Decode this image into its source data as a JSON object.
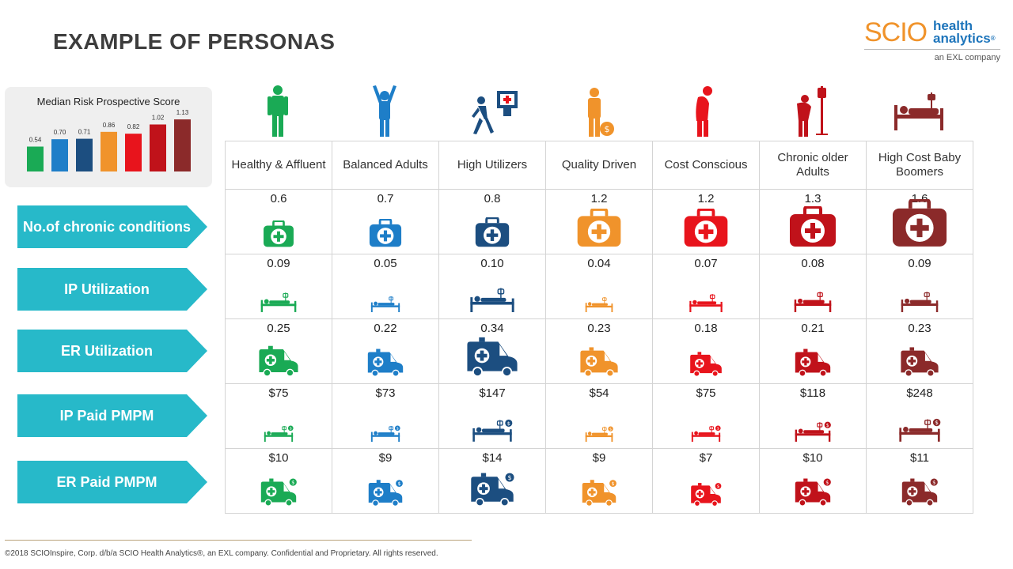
{
  "title": "EXAMPLE OF PERSONAS",
  "logo": {
    "brand_a": "SCIO",
    "brand_b1": "health",
    "brand_b2": "analytics",
    "reg": "®",
    "tagline": "an EXL company"
  },
  "risk_chart_title": "Median Risk Prospective Score",
  "chart_data": {
    "type": "bar",
    "title": "Median Risk Prospective Score",
    "categories": [
      "Healthy & Affluent",
      "Balanced Adults",
      "High Utilizers",
      "Quality Driven",
      "Cost Conscious",
      "Chronic older Adults",
      "High Cost Baby Boomers"
    ],
    "values": [
      0.54,
      0.7,
      0.71,
      0.86,
      0.82,
      1.02,
      1.13
    ],
    "value_labels": [
      "0.54",
      "0.70",
      "0.71",
      "0.86",
      "0.82",
      "1.02",
      "1.13"
    ],
    "colors": [
      "#1aaa55",
      "#1e7ec8",
      "#1c4e80",
      "#f0932b",
      "#e8141c",
      "#c0121a",
      "#8b2a2a"
    ],
    "grid": false
  },
  "row_labels": [
    "No.of chronic conditions",
    "IP Utilization",
    "ER Utilization",
    "IP Paid PMPM",
    "ER Paid PMPM"
  ],
  "personas": [
    {
      "name": "Healthy & Affluent",
      "color": "#1aaa55",
      "icon": "standing-person-icon",
      "values": [
        "0.6",
        "0.09",
        "0.25",
        "$75",
        "$10"
      ],
      "scale": [
        0.25,
        0.45,
        0.6,
        0.3,
        0.5
      ]
    },
    {
      "name": "Balanced Adults",
      "color": "#1e7ec8",
      "icon": "arms-raised-person-icon",
      "values": [
        "0.7",
        "0.05",
        "0.22",
        "$73",
        "$9"
      ],
      "scale": [
        0.3,
        0.3,
        0.5,
        0.3,
        0.45
      ]
    },
    {
      "name": "High Utilizers",
      "color": "#1c4e80",
      "icon": "walking-to-hospital-icon",
      "values": [
        "0.8",
        "0.10",
        "0.34",
        "$147",
        "$14"
      ],
      "scale": [
        0.35,
        0.7,
        0.9,
        0.55,
        0.7
      ]
    },
    {
      "name": "Quality Driven",
      "color": "#f0932b",
      "icon": "person-with-money-icon",
      "values": [
        "1.2",
        "0.04",
        "0.23",
        "$54",
        "$9"
      ],
      "scale": [
        0.6,
        0.25,
        0.55,
        0.25,
        0.45
      ]
    },
    {
      "name": "Cost Conscious",
      "color": "#e8141c",
      "icon": "sick-person-icon",
      "values": [
        "1.2",
        "0.07",
        "0.18",
        "$75",
        "$7"
      ],
      "scale": [
        0.6,
        0.4,
        0.4,
        0.3,
        0.35
      ]
    },
    {
      "name": "Chronic older Adults",
      "color": "#c0121a",
      "icon": "elderly-with-iv-icon",
      "values": [
        "1.3",
        "0.08",
        "0.21",
        "$118",
        "$10"
      ],
      "scale": [
        0.65,
        0.5,
        0.5,
        0.45,
        0.5
      ]
    },
    {
      "name": "High Cost Baby Boomers",
      "color": "#8b2a2a",
      "icon": "hospital-bed-patient-icon",
      "values": [
        "1.6",
        "0.09",
        "0.23",
        "$248",
        "$11"
      ],
      "scale": [
        0.85,
        0.5,
        0.55,
        0.6,
        0.5
      ]
    }
  ],
  "footer": "©2018 SCIOInspire, Corp. d/b/a SCIO Health Analytics®, an EXL company. Confidential and Proprietary. All rights reserved."
}
